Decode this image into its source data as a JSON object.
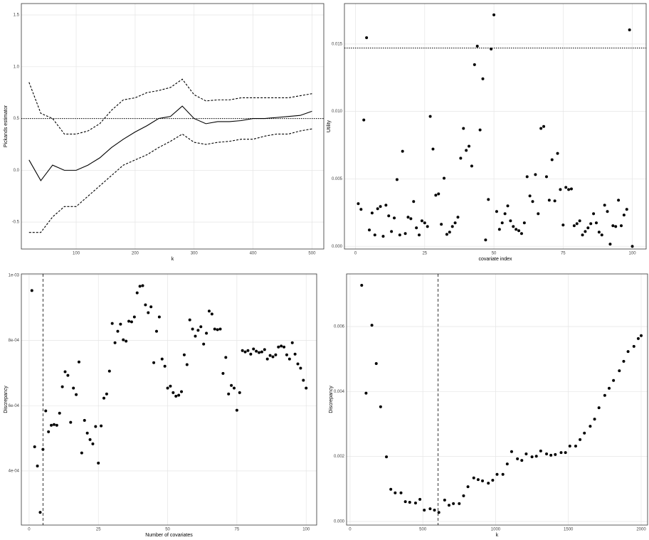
{
  "chart_data": [
    {
      "type": "line",
      "xlabel": "k",
      "ylabel": "Pickands estimator",
      "x": [
        20,
        40,
        60,
        80,
        100,
        120,
        140,
        160,
        180,
        200,
        220,
        240,
        260,
        280,
        300,
        320,
        340,
        360,
        380,
        400,
        420,
        440,
        460,
        480,
        500
      ],
      "series": [
        {
          "dash": "solid",
          "color": "#000000",
          "values": [
            0.1,
            -0.1,
            0.05,
            0.0,
            0.0,
            0.05,
            0.12,
            0.22,
            0.3,
            0.37,
            0.43,
            0.5,
            0.52,
            0.62,
            0.5,
            0.45,
            0.47,
            0.47,
            0.48,
            0.5,
            0.5,
            0.51,
            0.52,
            0.53,
            0.57
          ]
        },
        {
          "dash": "dashed",
          "color": "#000000",
          "values": [
            0.85,
            0.55,
            0.5,
            0.35,
            0.35,
            0.38,
            0.45,
            0.58,
            0.68,
            0.7,
            0.75,
            0.77,
            0.8,
            0.88,
            0.73,
            0.67,
            0.68,
            0.68,
            0.7,
            0.7,
            0.7,
            0.7,
            0.7,
            0.72,
            0.74
          ]
        },
        {
          "dash": "dashed",
          "color": "#000000",
          "values": [
            -0.6,
            -0.6,
            -0.45,
            -0.35,
            -0.35,
            -0.25,
            -0.15,
            -0.05,
            0.05,
            0.1,
            0.15,
            0.22,
            0.28,
            0.35,
            0.27,
            0.25,
            0.27,
            0.28,
            0.3,
            0.3,
            0.33,
            0.35,
            0.35,
            0.38,
            0.4
          ]
        }
      ],
      "hline": 0.5,
      "xlim": [
        7,
        520
      ],
      "ylim": [
        -0.76,
        1.61
      ],
      "xticks": [
        100,
        200,
        300,
        400,
        500
      ],
      "yticks": [
        -0.5,
        {
          "value": 0,
          "label": "0.0"
        },
        0.5,
        {
          "value": 1,
          "label": "1.0"
        },
        1.5
      ],
      "grid": true
    },
    {
      "type": "scatter",
      "xlabel": "covariate index",
      "ylabel": "Utility",
      "color": "#000000",
      "x": [
        1,
        2,
        3,
        4,
        5,
        6,
        7,
        8,
        9,
        10,
        11,
        12,
        13,
        14,
        15,
        16,
        17,
        18,
        19,
        20,
        21,
        22,
        23,
        24,
        25,
        26,
        27,
        28,
        29,
        30,
        31,
        32,
        33,
        34,
        35,
        36,
        37,
        38,
        39,
        40,
        41,
        42,
        43,
        44,
        45,
        46,
        47,
        48,
        49,
        50,
        51,
        52,
        53,
        54,
        55,
        56,
        57,
        58,
        59,
        60,
        61,
        62,
        63,
        64,
        65,
        66,
        67,
        68,
        69,
        70,
        71,
        72,
        73,
        74,
        75,
        76,
        77,
        78,
        79,
        80,
        81,
        82,
        83,
        84,
        85,
        86,
        87,
        88,
        89,
        90,
        91,
        92,
        93,
        94,
        95,
        96,
        97,
        98,
        99,
        100
      ],
      "values": [
        0.00316,
        0.00274,
        0.00937,
        0.01547,
        0.00121,
        0.00247,
        0.00084,
        0.00279,
        0.00295,
        0.00074,
        0.00305,
        0.00226,
        0.0011,
        0.0021,
        0.00495,
        0.00084,
        0.00705,
        0.00095,
        0.00216,
        0.00205,
        0.00332,
        0.00137,
        0.00084,
        0.00189,
        0.00174,
        0.00147,
        0.00963,
        0.00721,
        0.00379,
        0.00389,
        0.00163,
        0.00505,
        0.00089,
        0.00105,
        0.00147,
        0.00174,
        0.00216,
        0.00653,
        0.00874,
        0.00711,
        0.00742,
        0.00595,
        0.01347,
        0.01484,
        0.00863,
        0.01242,
        0.00047,
        0.00347,
        0.01463,
        0.01716,
        0.00258,
        0.00126,
        0.00174,
        0.00242,
        0.003,
        0.00189,
        0.00147,
        0.00126,
        0.00116,
        0.00095,
        0.00174,
        0.00516,
        0.00374,
        0.00332,
        0.00532,
        0.00242,
        0.00874,
        0.00889,
        0.00516,
        0.00342,
        0.00642,
        0.00337,
        0.00689,
        0.00421,
        0.00158,
        0.00437,
        0.00421,
        0.00426,
        0.00153,
        0.00168,
        0.00189,
        0.00084,
        0.0011,
        0.00137,
        0.00168,
        0.00242,
        0.00174,
        0.00105,
        0.00084,
        0.00305,
        0.00258,
        0.00016,
        0.00153,
        0.00147,
        0.00342,
        0.00153,
        0.00232,
        0.00274,
        0.01605,
        0.0
      ],
      "hline": 0.0147,
      "xlim": [
        -4,
        105
      ],
      "ylim": [
        -0.0002,
        0.018
      ],
      "xticks": [
        0,
        25,
        50,
        75,
        100
      ],
      "yticks": [
        {
          "value": 0,
          "label": "0.000"
        },
        0.005,
        {
          "value": 0.01,
          "label": "0.010"
        },
        0.015
      ],
      "grid": true
    },
    {
      "type": "scatter",
      "xlabel": "Number of covariates",
      "ylabel": "Discrepancy",
      "color": "#000000",
      "x": [
        1,
        2,
        3,
        4,
        5,
        6,
        7,
        8,
        9,
        10,
        11,
        12,
        13,
        14,
        15,
        16,
        17,
        18,
        19,
        20,
        21,
        22,
        23,
        24,
        25,
        26,
        27,
        28,
        29,
        30,
        31,
        32,
        33,
        34,
        35,
        36,
        37,
        38,
        39,
        40,
        41,
        42,
        43,
        44,
        45,
        46,
        47,
        48,
        49,
        50,
        51,
        52,
        53,
        54,
        55,
        56,
        57,
        58,
        59,
        60,
        61,
        62,
        63,
        64,
        65,
        66,
        67,
        68,
        69,
        70,
        71,
        72,
        73,
        74,
        75,
        76,
        77,
        78,
        79,
        80,
        81,
        82,
        83,
        84,
        85,
        86,
        87,
        88,
        89,
        90,
        91,
        92,
        93,
        94,
        95,
        96,
        97,
        98,
        99,
        100
      ],
      "values": [
        0.000953,
        0.000474,
        0.000415,
        0.000273,
        0.000466,
        0.000584,
        0.00052,
        0.00054,
        0.000542,
        0.00054,
        0.000577,
        0.000658,
        0.000704,
        0.000693,
        0.000549,
        0.000654,
        0.000634,
        0.000734,
        0.000455,
        0.000555,
        0.000516,
        0.000496,
        0.000483,
        0.000536,
        0.000424,
        0.000538,
        0.000623,
        0.000636,
        0.000706,
        0.000852,
        0.000793,
        0.000828,
        0.00085,
        0.000802,
        0.000798,
        0.000859,
        0.000857,
        0.000872,
        0.000946,
        0.000966,
        0.000968,
        0.000909,
        0.000885,
        0.000903,
        0.000732,
        0.000828,
        0.000872,
        0.000743,
        0.000721,
        0.000654,
        0.00066,
        0.00064,
        0.000629,
        0.000632,
        0.000643,
        0.000756,
        0.000726,
        0.000863,
        0.000835,
        0.000813,
        0.000831,
        0.000842,
        0.000789,
        0.000822,
        0.00089,
        0.000881,
        0.000835,
        0.000833,
        0.000835,
        0.000699,
        0.000748,
        0.000636,
        0.000662,
        0.000654,
        0.000586,
        0.00064,
        0.000769,
        0.000765,
        0.000769,
        0.000758,
        0.000774,
        0.000767,
        0.000763,
        0.000765,
        0.000772,
        0.000743,
        0.000754,
        0.00075,
        0.000756,
        0.00078,
        0.000783,
        0.00078,
        0.000756,
        0.000743,
        0.000793,
        0.000758,
        0.000728,
        0.000715,
        0.000678,
        0.000654
      ],
      "vline": 5,
      "xlim": [
        -2.8,
        103.8
      ],
      "ylim": [
        0.000234,
        0.001004
      ],
      "xticks": [
        0,
        25,
        50,
        75,
        100
      ],
      "yticks": [
        {
          "value": 0.0004,
          "label": "4e-04"
        },
        {
          "value": 0.0006,
          "label": "6e-04"
        },
        {
          "value": 0.0008,
          "label": "8e-04"
        },
        {
          "value": 0.001,
          "label": "1e-03"
        }
      ],
      "grid": true
    },
    {
      "type": "scatter",
      "xlabel": "k",
      "ylabel": "Discrepancy",
      "color": "#000000",
      "x": [
        80,
        110,
        150,
        180,
        210,
        250,
        280,
        310,
        350,
        380,
        410,
        450,
        480,
        510,
        550,
        580,
        610,
        650,
        680,
        710,
        750,
        780,
        810,
        850,
        880,
        910,
        950,
        980,
        1010,
        1050,
        1080,
        1110,
        1150,
        1180,
        1210,
        1250,
        1280,
        1310,
        1350,
        1380,
        1410,
        1450,
        1480,
        1510,
        1550,
        1580,
        1610,
        1650,
        1680,
        1710,
        1750,
        1780,
        1810,
        1850,
        1880,
        1910,
        1950,
        1980,
        2000
      ],
      "values": [
        0.00727,
        0.00395,
        0.00604,
        0.00486,
        0.00353,
        0.00199,
        0.00099,
        0.00088,
        0.00088,
        0.00061,
        0.00059,
        0.00057,
        0.00068,
        0.00035,
        0.00039,
        0.00035,
        0.00028,
        0.00066,
        0.0005,
        0.00055,
        0.00055,
        0.00079,
        0.00107,
        0.00134,
        0.00129,
        0.00125,
        0.00118,
        0.00127,
        0.00145,
        0.00145,
        0.00177,
        0.00215,
        0.00193,
        0.00188,
        0.00208,
        0.00199,
        0.00201,
        0.00217,
        0.00208,
        0.00204,
        0.00206,
        0.00212,
        0.00212,
        0.00232,
        0.00232,
        0.00252,
        0.00272,
        0.00293,
        0.00315,
        0.0035,
        0.00388,
        0.0041,
        0.00434,
        0.00464,
        0.00493,
        0.00523,
        0.00539,
        0.00563,
        0.00572
      ],
      "vline": 605,
      "xlim": [
        -24,
        2044
      ],
      "ylim": [
        -0.00011,
        0.00762
      ],
      "xticks": [
        0,
        500,
        1000,
        1500,
        2000
      ],
      "yticks": [
        {
          "value": 0,
          "label": "0.000"
        },
        0.002,
        0.004,
        0.006
      ],
      "grid": true
    }
  ]
}
